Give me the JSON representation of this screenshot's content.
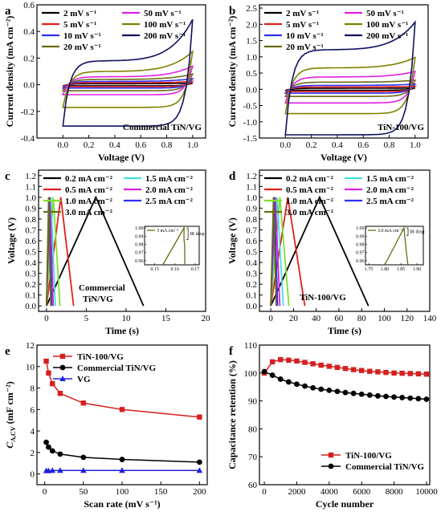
{
  "chart_data": [
    {
      "panel": "a",
      "type": "line",
      "xlabel": "Voltage (V)",
      "ylabel": "Current density (mA cm⁻²)",
      "xlim": [
        -0.2,
        1.1
      ],
      "ylim": [
        -0.4,
        0.6
      ],
      "xticks": [
        "0.0",
        "0.2",
        "0.4",
        "0.6",
        "0.8",
        "1.0"
      ],
      "yticks": [
        "-0.4",
        "-0.2",
        "0.0",
        "0.2",
        "0.4",
        "0.6"
      ],
      "annotation": "Commercial TiN/VG",
      "legend": [
        "2 mV s⁻¹",
        "50 mV s⁻¹",
        "5 mV s⁻¹",
        "100 mV s⁻¹",
        "10 mV s⁻¹",
        "200 mV s⁻¹",
        "20 mV s⁻¹"
      ],
      "series": [
        {
          "name": "2 mV s⁻¹",
          "color": "#000000",
          "top": 0.008,
          "bottom": -0.008,
          "peak": 0.012
        },
        {
          "name": "5 mV s⁻¹",
          "color": "#e0201b",
          "top": 0.015,
          "bottom": -0.014,
          "peak": 0.025
        },
        {
          "name": "10 mV s⁻¹",
          "color": "#2f2ff0",
          "top": 0.025,
          "bottom": -0.025,
          "peak": 0.045
        },
        {
          "name": "20 mV s⁻¹",
          "color": "#6b6b14",
          "top": 0.04,
          "bottom": -0.045,
          "peak": 0.08
        },
        {
          "name": "50 mV s⁻¹",
          "color": "#e020e0",
          "top": 0.06,
          "bottom": -0.075,
          "peak": 0.14
        },
        {
          "name": "100 mV s⁻¹",
          "color": "#808000",
          "top": 0.1,
          "bottom": -0.17,
          "peak": 0.25
        },
        {
          "name": "200 mV s⁻¹",
          "color": "#101060",
          "top": 0.18,
          "bottom": -0.31,
          "peak": 0.49
        }
      ]
    },
    {
      "panel": "b",
      "type": "line",
      "xlabel": "Voltage (V)",
      "ylabel": "Current density (mA cm⁻²)",
      "xlim": [
        -0.2,
        1.1
      ],
      "ylim": [
        -1.5,
        2.6
      ],
      "xticks": [
        "0.0",
        "0.2",
        "0.4",
        "0.6",
        "0.8",
        "1.0"
      ],
      "yticks": [
        "-1.5",
        "-1.0",
        "-0.5",
        "0.0",
        "0.5",
        "1.0",
        "1.5",
        "2.0",
        "2.5"
      ],
      "annotation": "TiN-100/VG",
      "legend": [
        "2 mV s⁻¹",
        "50 mV s⁻¹",
        "5 mV s⁻¹",
        "100 mV s⁻¹",
        "10 mV s⁻¹",
        "200 mV s⁻¹",
        "20 mV s⁻¹"
      ],
      "series": [
        {
          "name": "2 mV s⁻¹",
          "color": "#000000",
          "top": 0.03,
          "bottom": -0.03,
          "peak": 0.04
        },
        {
          "name": "5 mV s⁻¹",
          "color": "#e0201b",
          "top": 0.07,
          "bottom": -0.07,
          "peak": 0.09
        },
        {
          "name": "10 mV s⁻¹",
          "color": "#2f2ff0",
          "top": 0.12,
          "bottom": -0.12,
          "peak": 0.16
        },
        {
          "name": "20 mV s⁻¹",
          "color": "#6b6b14",
          "top": 0.22,
          "bottom": -0.22,
          "peak": 0.28
        },
        {
          "name": "50 mV s⁻¹",
          "color": "#e020e0",
          "top": 0.38,
          "bottom": -0.42,
          "peak": 0.55
        },
        {
          "name": "100 mV s⁻¹",
          "color": "#808000",
          "top": 0.66,
          "bottom": -0.75,
          "peak": 0.98
        },
        {
          "name": "200 mV s⁻¹",
          "color": "#101060",
          "top": 1.22,
          "bottom": -1.4,
          "peak": 2.07
        }
      ]
    },
    {
      "panel": "c",
      "type": "line",
      "xlabel": "Time (s)",
      "ylabel": "Voltage (V)",
      "xlim": [
        -1,
        20
      ],
      "ylim": [
        -0.05,
        1.25
      ],
      "xticks": [
        "0",
        "5",
        "10",
        "15",
        "20"
      ],
      "yticks": [
        "0.0",
        "0.1",
        "0.2",
        "0.3",
        "0.4",
        "0.5",
        "0.6",
        "0.7",
        "0.8",
        "0.9",
        "1.0",
        "1.1",
        "1.2"
      ],
      "annotation": [
        "Commercial",
        "TiN/VG"
      ],
      "legend": [
        "0.2 mA cm⁻²",
        "1.5 mA cm⁻²",
        "0.5 mA cm⁻²",
        "2.0 mA cm⁻²",
        "1.0 mA cm⁻²",
        "2.5 mA cm⁻²",
        "3.0 mA cm⁻²"
      ],
      "series": [
        {
          "name": "0.2 mA cm⁻²",
          "color": "#000000",
          "t_charge": 6.2,
          "t_end": 12.2
        },
        {
          "name": "0.5 mA cm⁻²",
          "color": "#e0201b",
          "t_charge": 1.8,
          "t_end": 3.4
        },
        {
          "name": "1.0 mA cm⁻²",
          "color": "#7fe030",
          "t_charge": 0.85,
          "t_end": 1.7
        },
        {
          "name": "1.5 mA cm⁻²",
          "color": "#40e0e0",
          "t_charge": 0.55,
          "t_end": 1.1
        },
        {
          "name": "2.0 mA cm⁻²",
          "color": "#e020e0",
          "t_charge": 0.42,
          "t_end": 0.85
        },
        {
          "name": "2.5 mA cm⁻²",
          "color": "#2f2ff0",
          "t_charge": 0.33,
          "t_end": 0.66
        },
        {
          "name": "3.0 mA cm⁻²",
          "color": "#6b6b14",
          "t_charge": 0.27,
          "t_end": 0.54
        }
      ],
      "inset": {
        "xlim": [
          0.145,
          0.172
        ],
        "ylim": [
          0.955,
          1.002
        ],
        "xticks": [
          "0.15",
          "0.16",
          "0.17"
        ],
        "yticks": [
          "0.96",
          "0.97",
          "0.98",
          "0.99",
          "1.00"
        ],
        "legend": "3 mA cm⁻²",
        "note": "IR drop",
        "curve": [
          [
            0.154,
            0.955
          ],
          [
            0.1645,
            1.0
          ],
          [
            0.1645,
            0.986
          ],
          [
            0.1648,
            0.978
          ],
          [
            0.1649,
            0.955
          ]
        ]
      }
    },
    {
      "panel": "d",
      "type": "line",
      "xlabel": "Time (s)",
      "ylabel": "Voltage (V)",
      "xlim": [
        -10,
        140
      ],
      "ylim": [
        -0.05,
        1.25
      ],
      "xticks": [
        "0",
        "20",
        "40",
        "60",
        "80",
        "100",
        "120",
        "140"
      ],
      "yticks": [
        "0.0",
        "0.1",
        "0.2",
        "0.3",
        "0.4",
        "0.5",
        "0.6",
        "0.7",
        "0.8",
        "0.9",
        "1.0",
        "1.1",
        "1.2"
      ],
      "annotation": "TiN-100/VG",
      "legend": [
        "0.2 mA cm⁻²",
        "1.5 mA cm⁻²",
        "0.5 mA cm⁻²",
        "2.0 mA cm⁻²",
        "1.0 mA cm⁻²",
        "2.5 mA cm⁻²",
        "3.0 mA cm⁻²"
      ],
      "series": [
        {
          "name": "0.2 mA cm⁻²",
          "color": "#000000",
          "t_charge": 43,
          "t_end": 86
        },
        {
          "name": "0.5 mA cm⁻²",
          "color": "#e0201b",
          "t_charge": 15,
          "t_end": 30
        },
        {
          "name": "1.0 mA cm⁻²",
          "color": "#7fe030",
          "t_charge": 8,
          "t_end": 16
        },
        {
          "name": "1.5 mA cm⁻²",
          "color": "#40e0e0",
          "t_charge": 5.5,
          "t_end": 11
        },
        {
          "name": "2.0 mA cm⁻²",
          "color": "#e020e0",
          "t_charge": 4,
          "t_end": 8
        },
        {
          "name": "2.5 mA cm⁻²",
          "color": "#2f2ff0",
          "t_charge": 3,
          "t_end": 6
        },
        {
          "name": "3.0 mA cm⁻²",
          "color": "#6b6b14",
          "t_charge": 2.4,
          "t_end": 4.8
        }
      ],
      "inset": {
        "xlim": [
          1.74,
          1.92
        ],
        "ylim": [
          0.955,
          1.002
        ],
        "xticks": [
          "1.75",
          "1.80",
          "1.85",
          "1.90"
        ],
        "yticks": [
          "0.96",
          "0.97",
          "0.98",
          "0.99",
          "1.00"
        ],
        "legend": "3.0 mA cm⁻²",
        "note": "IR drop",
        "curve": [
          [
            1.8,
            0.955
          ],
          [
            1.86,
            1.0
          ],
          [
            1.862,
            0.991
          ],
          [
            1.866,
            0.975
          ],
          [
            1.872,
            0.955
          ]
        ]
      }
    },
    {
      "panel": "e",
      "type": "line",
      "xlabel": "Scan rate (mV s⁻¹)",
      "ylabel": "C_A,CV (mF cm⁻²)",
      "xlim": [
        -10,
        210
      ],
      "ylim": [
        -1,
        12
      ],
      "xticks": [
        "0",
        "50",
        "100",
        "150",
        "200"
      ],
      "yticks": [
        "0",
        "2",
        "4",
        "6",
        "8",
        "10",
        "12"
      ],
      "x": [
        2,
        5,
        10,
        20,
        50,
        100,
        200
      ],
      "series": [
        {
          "name": "TiN-100/VG",
          "color": "#d42020",
          "marker": "square",
          "values": [
            10.5,
            9.4,
            8.4,
            7.5,
            6.6,
            6.0,
            5.3
          ]
        },
        {
          "name": "Commercial TiN/VG",
          "color": "#000000",
          "marker": "circle",
          "values": [
            2.95,
            2.5,
            2.15,
            1.85,
            1.55,
            1.35,
            1.1
          ]
        },
        {
          "name": "VG",
          "color": "#2020e0",
          "marker": "triangle",
          "values": [
            0.3,
            0.3,
            0.33,
            0.33,
            0.33,
            0.33,
            0.33
          ]
        }
      ]
    },
    {
      "panel": "f",
      "type": "line",
      "xlabel": "Cycle number",
      "ylabel": "Capacitance retention (%)",
      "xlim": [
        -300,
        10200
      ],
      "ylim": [
        60,
        110
      ],
      "xticks": [
        "0",
        "2000",
        "4000",
        "6000",
        "8000",
        "10000"
      ],
      "yticks": [
        "60",
        "70",
        "80",
        "90",
        "100",
        "110"
      ],
      "x": [
        0,
        500,
        1000,
        1500,
        2000,
        2500,
        3000,
        3500,
        4000,
        4500,
        5000,
        5500,
        6000,
        6500,
        7000,
        7500,
        8000,
        8500,
        9000,
        9500,
        10000
      ],
      "series": [
        {
          "name": "TiN-100/VG",
          "color": "#d42020",
          "marker": "square",
          "values": [
            100,
            104,
            104.8,
            104.6,
            104.3,
            103.8,
            103.3,
            102.8,
            102.4,
            102.0,
            101.6,
            101.2,
            100.9,
            100.6,
            100.4,
            100.2,
            100.0,
            99.9,
            99.8,
            99.7,
            99.6
          ]
        },
        {
          "name": "Commercial TiN/VG",
          "color": "#000000",
          "marker": "circle",
          "values": [
            100.5,
            99.2,
            97.8,
            96.8,
            96.0,
            95.3,
            94.7,
            94.2,
            93.8,
            93.4,
            93.0,
            92.7,
            92.4,
            92.1,
            91.8,
            91.6,
            91.4,
            91.2,
            91.0,
            90.8,
            90.6
          ]
        }
      ]
    }
  ]
}
